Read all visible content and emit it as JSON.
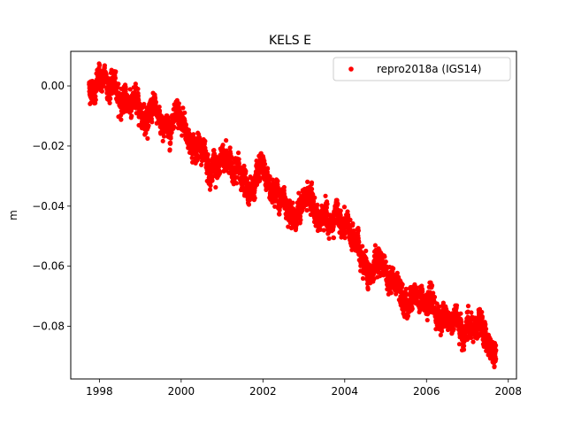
{
  "chart_data": {
    "type": "scatter",
    "title": "KELS E",
    "xlabel": "",
    "ylabel": "m",
    "xlim": [
      1997.3,
      2008.2
    ],
    "ylim": [
      -0.0975,
      0.0115
    ],
    "x_ticks": [
      {
        "value": 1998,
        "label": "1998"
      },
      {
        "value": 2000,
        "label": "2000"
      },
      {
        "value": 2002,
        "label": "2002"
      },
      {
        "value": 2004,
        "label": "2004"
      },
      {
        "value": 2006,
        "label": "2006"
      },
      {
        "value": 2008,
        "label": "2008"
      }
    ],
    "y_ticks": [
      {
        "value": 0.0,
        "label": "0.00"
      },
      {
        "value": -0.02,
        "label": "−0.02"
      },
      {
        "value": -0.04,
        "label": "−0.04"
      },
      {
        "value": -0.06,
        "label": "−0.06"
      },
      {
        "value": -0.08,
        "label": "−0.08"
      }
    ],
    "legend": {
      "position": "top-right",
      "entries": [
        {
          "label": "repro2018a (IGS14)",
          "color": "#ff0000"
        }
      ]
    },
    "grid": false,
    "series": [
      {
        "name": "repro2018a (IGS14)",
        "color": "#ff0000",
        "marker": "circle",
        "trend_points": [
          {
            "x": 1997.75,
            "y": -0.001
          },
          {
            "x": 1998.0,
            "y": 0.002
          },
          {
            "x": 1998.3,
            "y": 0.0
          },
          {
            "x": 1998.6,
            "y": -0.005
          },
          {
            "x": 1999.0,
            "y": -0.006
          },
          {
            "x": 1999.3,
            "y": -0.01
          },
          {
            "x": 1999.7,
            "y": -0.013
          },
          {
            "x": 2000.0,
            "y": -0.015
          },
          {
            "x": 2000.5,
            "y": -0.022
          },
          {
            "x": 2000.9,
            "y": -0.025
          },
          {
            "x": 2001.3,
            "y": -0.027
          },
          {
            "x": 2001.6,
            "y": -0.034
          },
          {
            "x": 2002.0,
            "y": -0.033
          },
          {
            "x": 2002.4,
            "y": -0.036
          },
          {
            "x": 2002.8,
            "y": -0.041
          },
          {
            "x": 2003.1,
            "y": -0.038
          },
          {
            "x": 2003.5,
            "y": -0.046
          },
          {
            "x": 2004.0,
            "y": -0.049
          },
          {
            "x": 2004.3,
            "y": -0.053
          },
          {
            "x": 2004.6,
            "y": -0.06
          },
          {
            "x": 2005.0,
            "y": -0.063
          },
          {
            "x": 2005.5,
            "y": -0.068
          },
          {
            "x": 2006.0,
            "y": -0.073
          },
          {
            "x": 2006.5,
            "y": -0.079
          },
          {
            "x": 2007.0,
            "y": -0.08
          },
          {
            "x": 2007.3,
            "y": -0.082
          },
          {
            "x": 2007.5,
            "y": -0.085
          },
          {
            "x": 2007.7,
            "y": -0.09
          }
        ],
        "scatter_sd": 0.0018
      }
    ]
  }
}
